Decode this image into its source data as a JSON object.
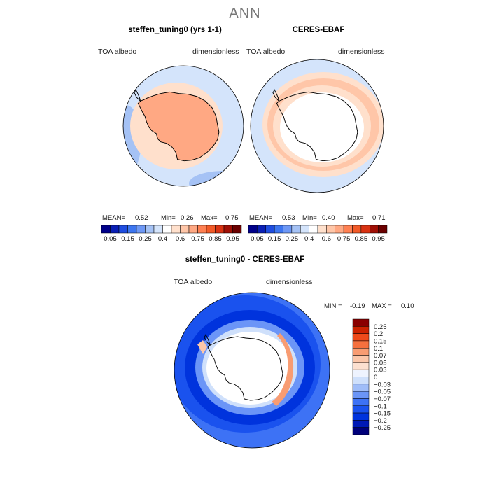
{
  "page": {
    "title": "ANN"
  },
  "colors": {
    "scale_abs": [
      "#00008a",
      "#0a1fb5",
      "#1f4de0",
      "#3d76f0",
      "#6e98f5",
      "#a5c2f5",
      "#d4e4fb",
      "#ffffff",
      "#ffe0cc",
      "#ffc6a8",
      "#ffa883",
      "#ff8052",
      "#f25a28",
      "#d93212",
      "#a00f05",
      "#6b0000"
    ],
    "scale_diff": [
      "#00007a",
      "#0019b5",
      "#0033dd",
      "#1a52ee",
      "#3d72f5",
      "#6b95f7",
      "#a0bdf8",
      "#cfe0fb",
      "#eef3fe",
      "#fce0d0",
      "#fbc6a9",
      "#f89c72",
      "#f5703e",
      "#ee4a1a",
      "#cc2200",
      "#8a0000"
    ]
  },
  "chart_data": [
    {
      "type": "heatmap",
      "title": "steffen_tuning0 (yrs 1-1)",
      "left_label": "TOA  albedo",
      "right_label": "dimensionless",
      "stats": {
        "mean_label": "MEAN=",
        "mean": "0.52",
        "min_label": "Min=",
        "min": "0.26",
        "max_label": "Max=",
        "max": "0.75"
      },
      "colorbar_ticks": [
        "0.05",
        "0.15",
        "0.25",
        "0.4",
        "0.6",
        "0.75",
        "0.85",
        "0.95"
      ]
    },
    {
      "type": "heatmap",
      "title": "CERES-EBAF",
      "left_label": "TOA  albedo",
      "right_label": "dimensionless",
      "stats": {
        "mean_label": "MEAN=",
        "mean": "0.53",
        "min_label": "Min=",
        "min": "0.40",
        "max_label": "Max=",
        "max": "0.71"
      },
      "colorbar_ticks": [
        "0.05",
        "0.15",
        "0.25",
        "0.4",
        "0.6",
        "0.75",
        "0.85",
        "0.95"
      ]
    },
    {
      "type": "heatmap",
      "title": "steffen_tuning0 - CERES-EBAF",
      "left_label": "TOA  albedo",
      "right_label": "dimensionless",
      "stats": {
        "min_label": "MIN =",
        "min": "-0.19",
        "max_label": "MAX =",
        "max": "0.10"
      },
      "colorbar_ticks": [
        "0.25",
        "0.2",
        "0.15",
        "0.1",
        "0.07",
        "0.05",
        "0.03",
        "0",
        "−0.03",
        "−0.05",
        "−0.07",
        "−0.1",
        "−0.15",
        "−0.2",
        "−0.25"
      ]
    }
  ]
}
